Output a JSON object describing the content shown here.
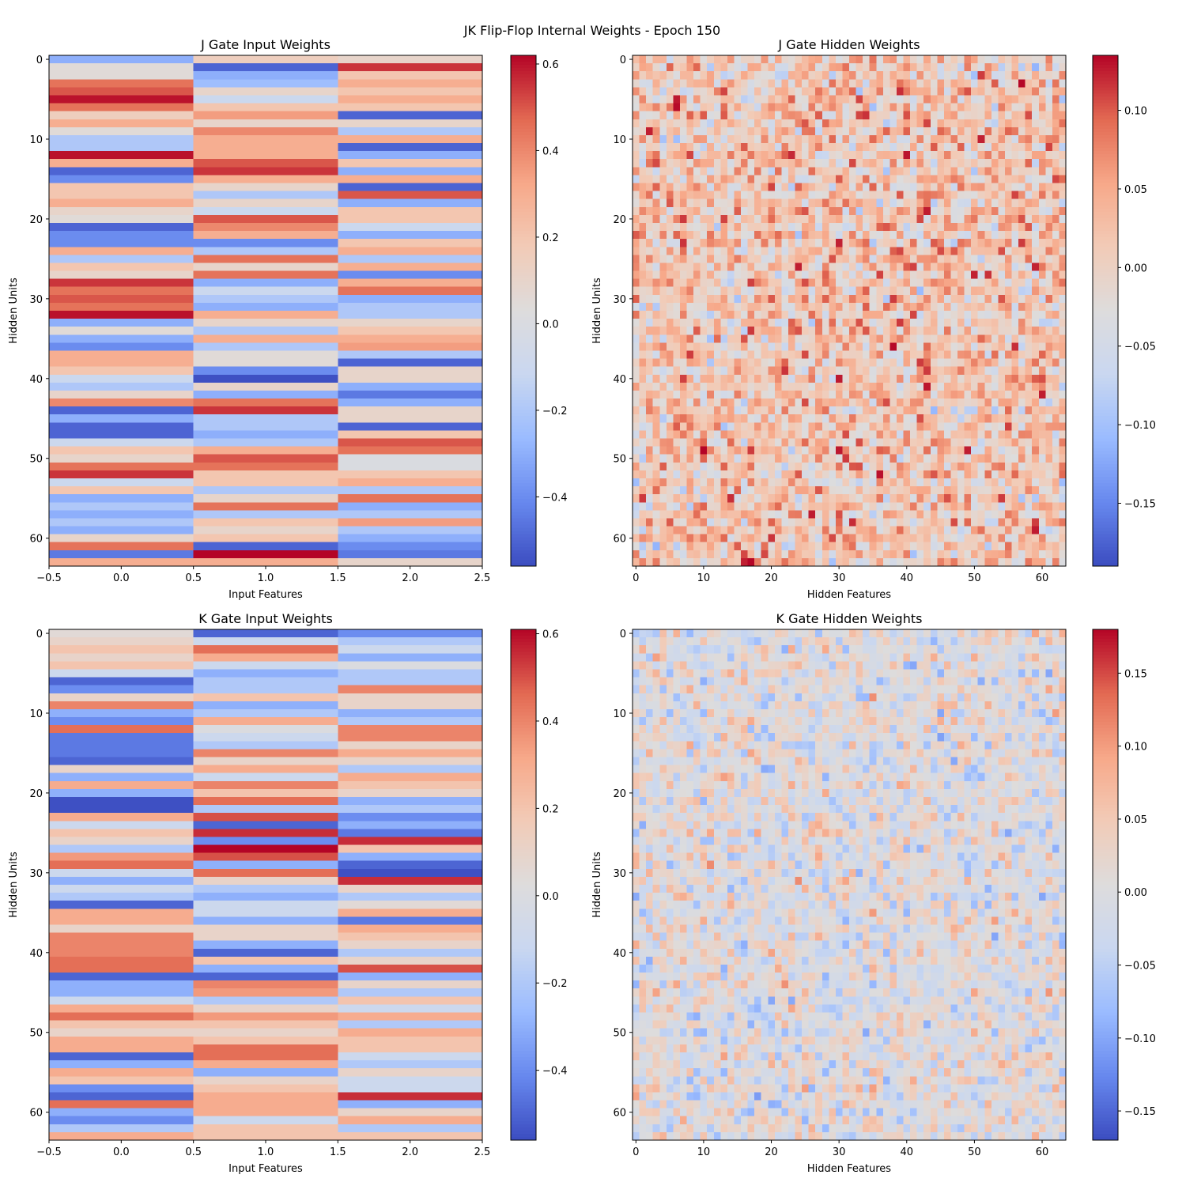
{
  "figure": {
    "suptitle": "JK Flip-Flop Internal Weights - Epoch 150"
  },
  "colormap": {
    "name": "coolwarm",
    "stops": [
      "#3b4cc0",
      "#6788ee",
      "#9abbff",
      "#c9d7f0",
      "#dddcdc",
      "#f2cbb7",
      "#f7a889",
      "#e26952",
      "#b40426"
    ]
  },
  "chart_data": [
    {
      "id": "j-input",
      "type": "heatmap",
      "title": "J Gate Input Weights",
      "xlabel": "Input Features",
      "ylabel": "Hidden Units",
      "rows": 64,
      "cols": 3,
      "xlim": [
        -0.5,
        2.5
      ],
      "ylim": [
        63.5,
        -0.5
      ],
      "xticks": [
        -0.5,
        0.0,
        0.5,
        1.0,
        1.5,
        2.0,
        2.5
      ],
      "xtick_labels": [
        "−0.5",
        "0.0",
        "0.5",
        "1.0",
        "1.5",
        "2.0",
        "2.5"
      ],
      "yticks": [
        0,
        10,
        20,
        30,
        40,
        50,
        60
      ],
      "ytick_labels": [
        "0",
        "10",
        "20",
        "30",
        "40",
        "50",
        "60"
      ],
      "vmin": -0.56,
      "vmax": 0.62,
      "cbar_ticks": [
        -0.4,
        -0.2,
        0.0,
        0.2,
        0.4,
        0.6
      ],
      "cbar_labels": [
        "−0.4",
        "−0.2",
        "0.0",
        "0.2",
        "0.4",
        "0.6"
      ],
      "values": [
        [
          -0.3,
          0.15,
          0.1
        ],
        [
          0.05,
          -0.5,
          0.55
        ],
        [
          0.05,
          -0.3,
          0.2
        ],
        [
          0.45,
          -0.25,
          0.3
        ],
        [
          0.5,
          0.1,
          0.2
        ],
        [
          0.6,
          -0.1,
          0.3
        ],
        [
          0.45,
          0.2,
          0.2
        ],
        [
          0.15,
          0.35,
          -0.5
        ],
        [
          0.3,
          0.1,
          0.1
        ],
        [
          0.05,
          0.4,
          -0.2
        ],
        [
          -0.2,
          0.3,
          0.3
        ],
        [
          -0.2,
          0.3,
          -0.5
        ],
        [
          0.6,
          0.3,
          -0.3
        ],
        [
          0.3,
          0.5,
          0.2
        ],
        [
          -0.5,
          0.55,
          -0.3
        ],
        [
          -0.4,
          0.3,
          0.3
        ],
        [
          0.2,
          0.1,
          -0.5
        ],
        [
          0.2,
          -0.2,
          0.5
        ],
        [
          0.3,
          0.1,
          -0.3
        ],
        [
          0.1,
          -0.1,
          0.2
        ],
        [
          0.05,
          0.5,
          0.2
        ],
        [
          -0.5,
          0.4,
          -0.1
        ],
        [
          -0.4,
          0.3,
          -0.3
        ],
        [
          -0.4,
          -0.4,
          0.2
        ],
        [
          0.3,
          -0.2,
          0.3
        ],
        [
          -0.2,
          0.45,
          -0.2
        ],
        [
          0.2,
          0.1,
          0.3
        ],
        [
          0.1,
          0.45,
          -0.4
        ],
        [
          0.55,
          -0.3,
          0.3
        ],
        [
          0.45,
          -0.1,
          0.45
        ],
        [
          0.5,
          -0.2,
          -0.3
        ],
        [
          0.45,
          -0.3,
          -0.2
        ],
        [
          0.6,
          0.3,
          -0.2
        ],
        [
          -0.3,
          0.1,
          0.1
        ],
        [
          0.05,
          -0.2,
          0.2
        ],
        [
          -0.3,
          0.3,
          0.3
        ],
        [
          -0.4,
          -0.2,
          0.35
        ],
        [
          0.3,
          0.05,
          -0.2
        ],
        [
          0.3,
          0.05,
          -0.5
        ],
        [
          0.2,
          -0.4,
          0.1
        ],
        [
          -0.1,
          -0.55,
          0.1
        ],
        [
          -0.2,
          0.1,
          -0.3
        ],
        [
          0.1,
          -0.3,
          -0.45
        ],
        [
          0.4,
          0.45,
          -0.3
        ],
        [
          -0.5,
          0.55,
          0.1
        ],
        [
          -0.3,
          -0.2,
          0.1
        ],
        [
          -0.5,
          -0.2,
          -0.5
        ],
        [
          -0.5,
          -0.3,
          0.2
        ],
        [
          -0.1,
          -0.2,
          0.5
        ],
        [
          0.2,
          0.3,
          0.45
        ],
        [
          0.1,
          0.5,
          0.0
        ],
        [
          0.45,
          0.45,
          0.0
        ],
        [
          0.55,
          0.2,
          0.2
        ],
        [
          -0.1,
          0.2,
          0.3
        ],
        [
          0.2,
          -0.2,
          -0.2
        ],
        [
          -0.3,
          0.1,
          0.45
        ],
        [
          -0.2,
          0.45,
          -0.3
        ],
        [
          -0.3,
          -0.2,
          -0.2
        ],
        [
          -0.2,
          0.2,
          0.35
        ],
        [
          -0.3,
          0.1,
          -0.2
        ],
        [
          0.1,
          0.2,
          -0.3
        ],
        [
          0.45,
          -0.5,
          -0.4
        ],
        [
          -0.45,
          0.62,
          -0.45
        ],
        [
          0.3,
          0.3,
          0.1
        ]
      ]
    },
    {
      "id": "j-hidden",
      "type": "heatmap",
      "title": "J Gate Hidden Weights",
      "xlabel": "Hidden Features",
      "ylabel": "Hidden Units",
      "rows": 64,
      "cols": 64,
      "xlim": [
        -0.5,
        63.5
      ],
      "ylim": [
        63.5,
        -0.5
      ],
      "xticks": [
        0,
        10,
        20,
        30,
        40,
        50,
        60
      ],
      "xtick_labels": [
        "0",
        "10",
        "20",
        "30",
        "40",
        "50",
        "60"
      ],
      "yticks": [
        0,
        10,
        20,
        30,
        40,
        50,
        60
      ],
      "ytick_labels": [
        "0",
        "10",
        "20",
        "30",
        "40",
        "50",
        "60"
      ],
      "vmin": -0.19,
      "vmax": 0.135,
      "cbar_ticks": [
        -0.15,
        -0.1,
        -0.05,
        0.0,
        0.05,
        0.1
      ],
      "cbar_labels": [
        "−0.15",
        "−0.10",
        "−0.05",
        "0.00",
        "0.05",
        "0.10"
      ],
      "generated": {
        "seed": 11,
        "mean": 0.015,
        "spread": 0.085
      }
    },
    {
      "id": "k-input",
      "type": "heatmap",
      "title": "K Gate Input Weights",
      "xlabel": "Input Features",
      "ylabel": "Hidden Units",
      "rows": 64,
      "cols": 3,
      "xlim": [
        -0.5,
        2.5
      ],
      "ylim": [
        63.5,
        -0.5
      ],
      "xticks": [
        -0.5,
        0.0,
        0.5,
        1.0,
        1.5,
        2.0,
        2.5
      ],
      "xtick_labels": [
        "−0.5",
        "0.0",
        "0.5",
        "1.0",
        "1.5",
        "2.0",
        "2.5"
      ],
      "yticks": [
        0,
        10,
        20,
        30,
        40,
        50,
        60
      ],
      "ytick_labels": [
        "0",
        "10",
        "20",
        "30",
        "40",
        "50",
        "60"
      ],
      "vmin": -0.56,
      "vmax": 0.61,
      "cbar_ticks": [
        -0.4,
        -0.2,
        0.0,
        0.2,
        0.4,
        0.6
      ],
      "cbar_labels": [
        "−0.4",
        "−0.2",
        "0.0",
        "0.2",
        "0.4",
        "0.6"
      ],
      "values": [
        [
          0.05,
          -0.5,
          -0.4
        ],
        [
          0.1,
          -0.1,
          -0.2
        ],
        [
          0.2,
          0.45,
          -0.1
        ],
        [
          0.1,
          0.3,
          -0.3
        ],
        [
          0.2,
          -0.1,
          0.0
        ],
        [
          -0.1,
          -0.3,
          -0.2
        ],
        [
          -0.5,
          -0.2,
          -0.2
        ],
        [
          -0.4,
          -0.2,
          0.4
        ],
        [
          0.1,
          0.2,
          0.1
        ],
        [
          0.4,
          -0.3,
          0.1
        ],
        [
          -0.3,
          -0.2,
          -0.3
        ],
        [
          -0.4,
          0.3,
          -0.2
        ],
        [
          0.45,
          0.0,
          0.4
        ],
        [
          -0.45,
          -0.1,
          0.4
        ],
        [
          -0.45,
          -0.2,
          0.1
        ],
        [
          -0.45,
          0.4,
          0.3
        ],
        [
          -0.5,
          0.1,
          0.1
        ],
        [
          0.1,
          0.3,
          -0.2
        ],
        [
          -0.3,
          -0.1,
          0.3
        ],
        [
          0.3,
          0.4,
          0.2
        ],
        [
          -0.3,
          0.2,
          0.1
        ],
        [
          -0.55,
          0.45,
          -0.3
        ],
        [
          -0.55,
          -0.2,
          -0.2
        ],
        [
          0.3,
          0.5,
          -0.4
        ],
        [
          -0.1,
          -0.5,
          -0.3
        ],
        [
          0.2,
          0.55,
          -0.45
        ],
        [
          0.1,
          -0.4,
          0.55
        ],
        [
          -0.2,
          0.62,
          0.2
        ],
        [
          0.35,
          0.5,
          -0.3
        ],
        [
          0.45,
          -0.3,
          -0.5
        ],
        [
          -0.1,
          0.45,
          -0.55
        ],
        [
          -0.3,
          0.1,
          0.55
        ],
        [
          -0.1,
          -0.2,
          0.1
        ],
        [
          -0.2,
          -0.3,
          -0.2
        ],
        [
          -0.5,
          -0.1,
          0.05
        ],
        [
          0.3,
          -0.1,
          0.3
        ],
        [
          0.3,
          -0.3,
          -0.45
        ],
        [
          0.1,
          0.1,
          0.3
        ],
        [
          0.4,
          0.1,
          0.2
        ],
        [
          0.4,
          -0.3,
          0.1
        ],
        [
          0.4,
          -0.5,
          -0.2
        ],
        [
          0.45,
          0.2,
          0.1
        ],
        [
          0.45,
          -0.3,
          0.5
        ],
        [
          -0.5,
          -0.5,
          -0.3
        ],
        [
          -0.3,
          0.4,
          0.1
        ],
        [
          -0.3,
          0.35,
          -0.2
        ],
        [
          -0.1,
          -0.2,
          0.2
        ],
        [
          0.3,
          0.1,
          -0.1
        ],
        [
          0.45,
          0.35,
          0.3
        ],
        [
          0.2,
          0.2,
          -0.2
        ],
        [
          0.1,
          0.1,
          0.3
        ],
        [
          0.3,
          0.2,
          0.2
        ],
        [
          0.3,
          0.45,
          0.2
        ],
        [
          -0.5,
          0.45,
          -0.1
        ],
        [
          -0.3,
          0.3,
          -0.2
        ],
        [
          0.3,
          -0.3,
          0.1
        ],
        [
          0.2,
          0.1,
          -0.1
        ],
        [
          -0.4,
          0.2,
          -0.1
        ],
        [
          -0.5,
          0.3,
          0.55
        ],
        [
          0.45,
          0.3,
          -0.3
        ],
        [
          -0.3,
          0.3,
          0.1
        ],
        [
          -0.4,
          -0.1,
          0.3
        ],
        [
          -0.2,
          0.2,
          -0.2
        ],
        [
          0.3,
          0.2,
          0.2
        ]
      ]
    },
    {
      "id": "k-hidden",
      "type": "heatmap",
      "title": "K Gate Hidden Weights",
      "xlabel": "Hidden Features",
      "ylabel": "Hidden Units",
      "rows": 64,
      "cols": 64,
      "xlim": [
        -0.5,
        63.5
      ],
      "ylim": [
        63.5,
        -0.5
      ],
      "xticks": [
        0,
        10,
        20,
        30,
        40,
        50,
        60
      ],
      "xtick_labels": [
        "0",
        "10",
        "20",
        "30",
        "40",
        "50",
        "60"
      ],
      "yticks": [
        0,
        10,
        20,
        30,
        40,
        50,
        60
      ],
      "ytick_labels": [
        "0",
        "10",
        "20",
        "30",
        "40",
        "50",
        "60"
      ],
      "vmin": -0.17,
      "vmax": 0.18,
      "cbar_ticks": [
        -0.15,
        -0.1,
        -0.05,
        0.0,
        0.05,
        0.1,
        0.15
      ],
      "cbar_labels": [
        "−0.15",
        "−0.10",
        "−0.05",
        "0.00",
        "0.05",
        "0.10",
        "0.15"
      ],
      "generated": {
        "seed": 29,
        "mean": 0.0,
        "spread": 0.075
      }
    }
  ]
}
